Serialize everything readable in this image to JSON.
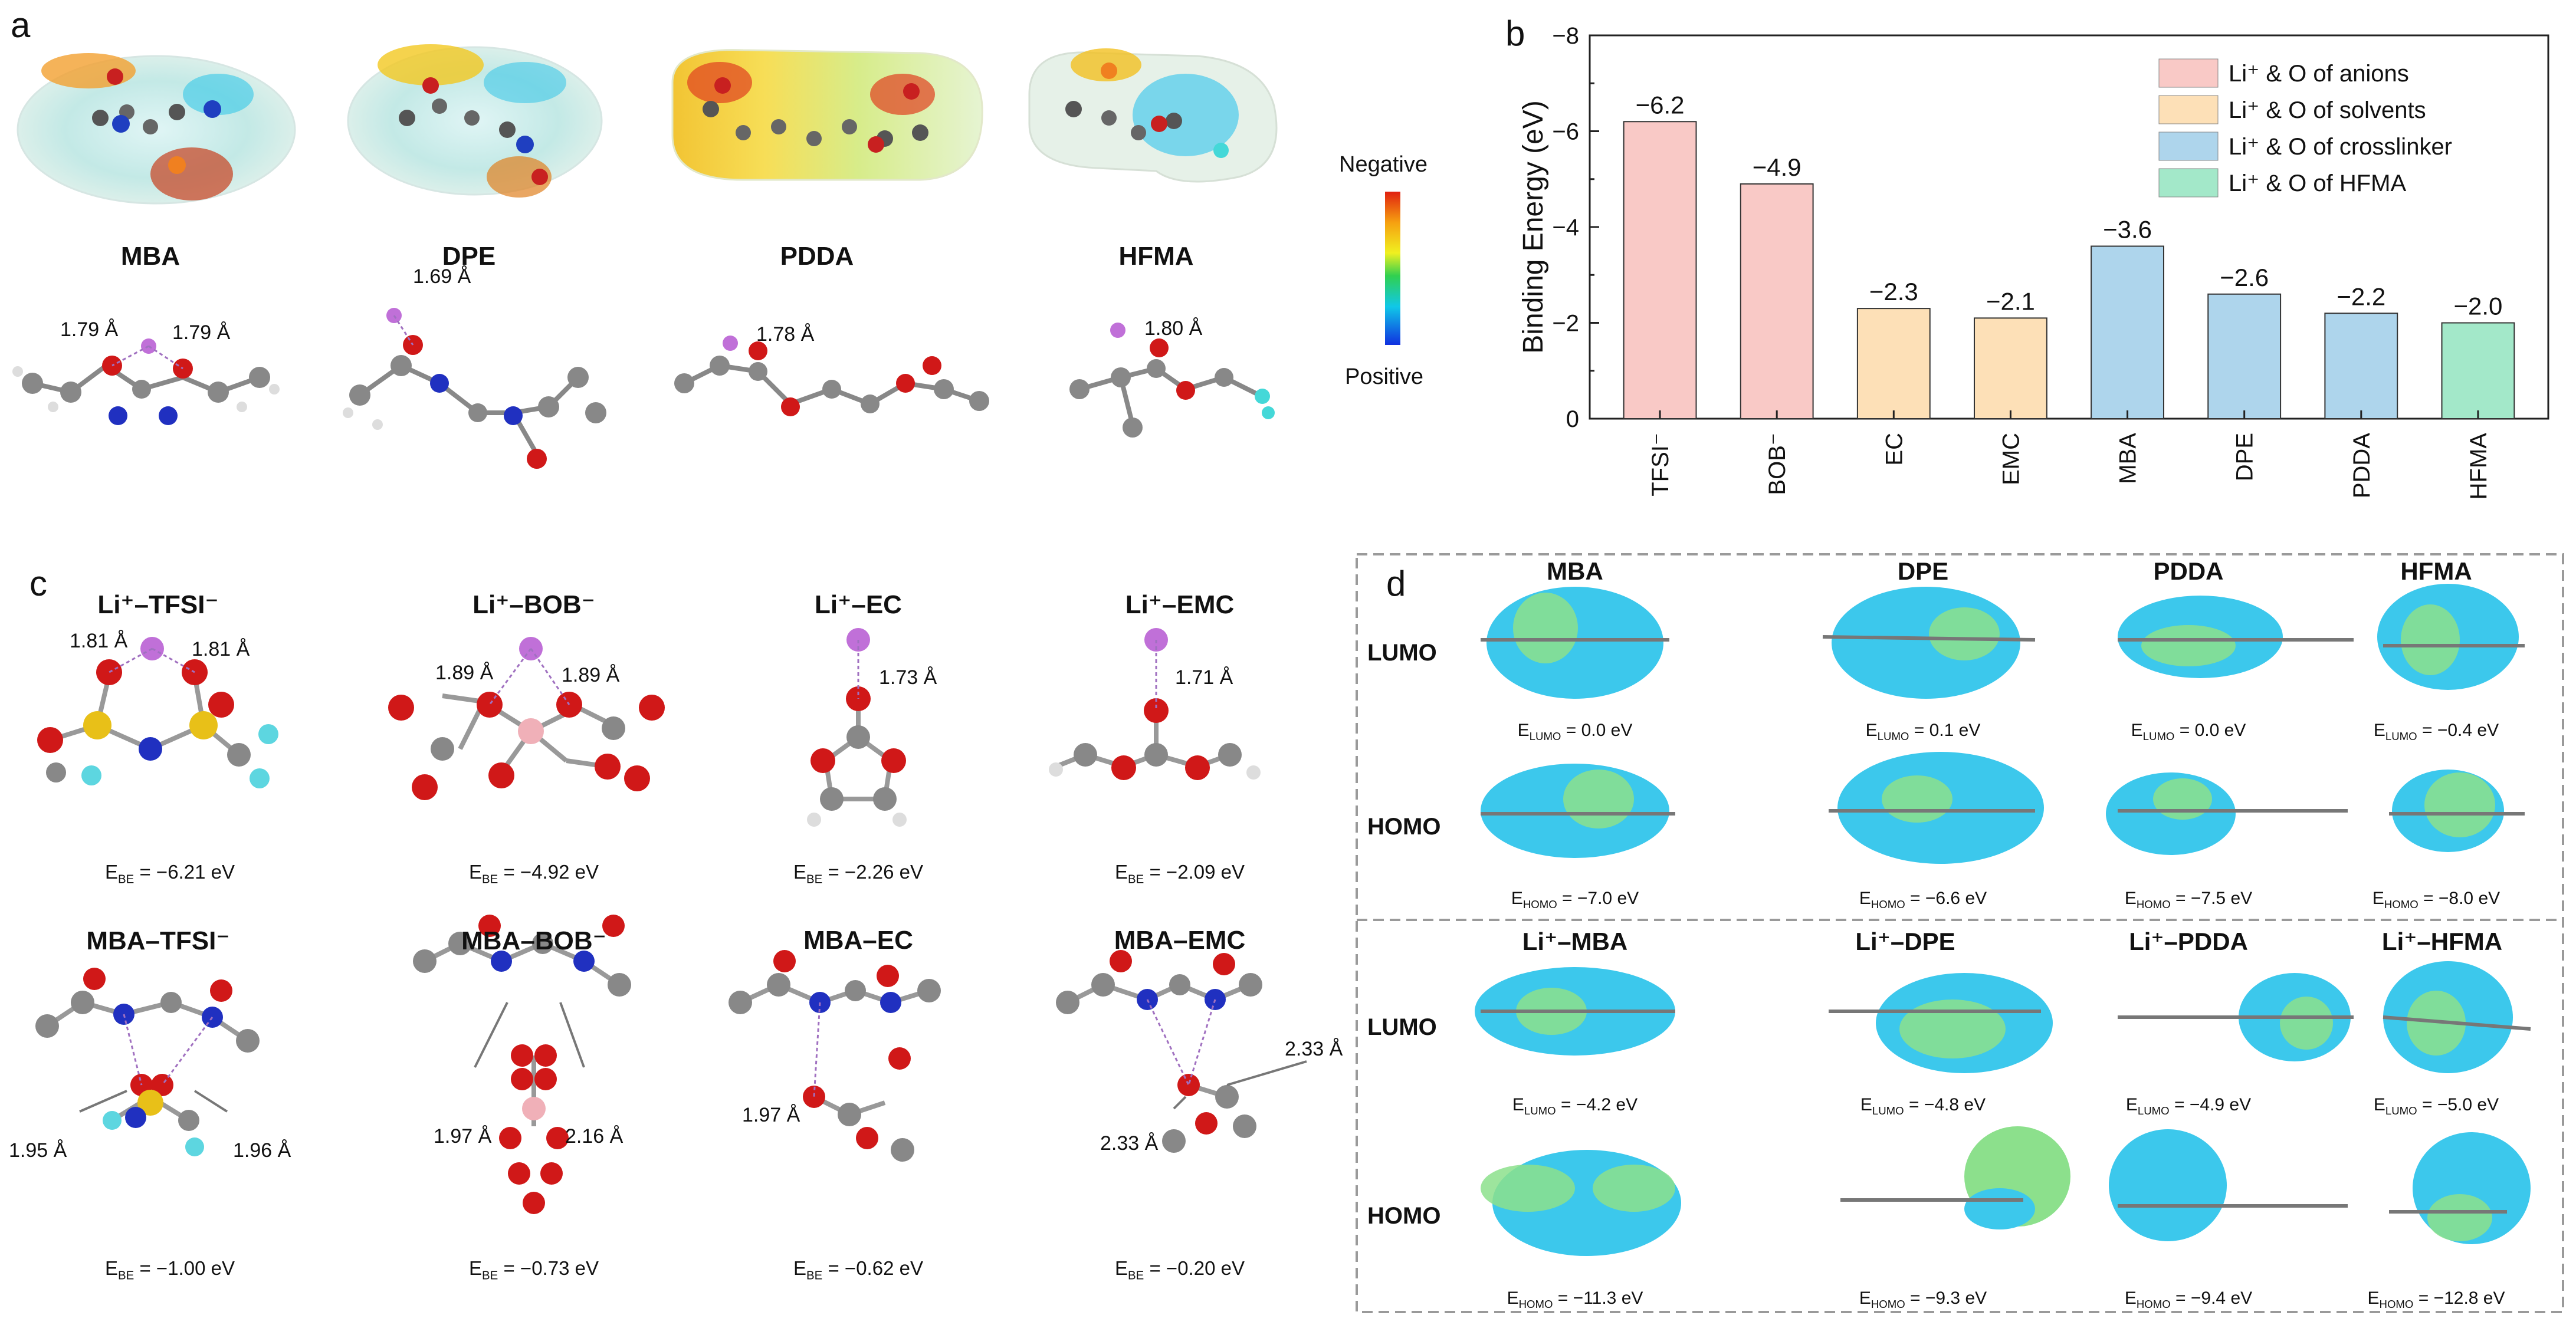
{
  "panels": {
    "a": "a",
    "b": "b",
    "c": "c",
    "d": "d"
  },
  "panel_a": {
    "molecules": [
      {
        "name": "MBA",
        "dists": [
          "1.79 Å",
          "1.79 Å"
        ]
      },
      {
        "name": "DPE",
        "dists": [
          "1.69 Å"
        ]
      },
      {
        "name": "PDDA",
        "dists": [
          "1.78 Å"
        ]
      },
      {
        "name": "HFMA",
        "dists": [
          "1.80 Å"
        ]
      }
    ],
    "colorbar": {
      "top": "Negative",
      "bottom": "Positive"
    }
  },
  "chart_data": {
    "type": "bar",
    "ylabel": "Binding Energy (eV)",
    "ylim": [
      0,
      -8
    ],
    "yticks": [
      "0",
      "−2",
      "−4",
      "−6",
      "−8"
    ],
    "categories": [
      "TFSI⁻",
      "BOB⁻",
      "EC",
      "EMC",
      "MBA",
      "DPE",
      "PDDA",
      "HFMA"
    ],
    "values": [
      -6.2,
      -4.9,
      -2.3,
      -2.1,
      -3.6,
      -2.6,
      -2.2,
      -2.0
    ],
    "value_labels": [
      "−6.2",
      "−4.9",
      "−2.3",
      "−2.1",
      "−3.6",
      "−2.6",
      "−2.2",
      "−2.0"
    ],
    "groups": [
      "anions",
      "anions",
      "solvents",
      "solvents",
      "crosslinker",
      "crosslinker",
      "crosslinker",
      "HFMA"
    ],
    "legend": [
      {
        "key": "anions",
        "label": "Li⁺ & O of anions",
        "color": "#f9c9c6"
      },
      {
        "key": "solvents",
        "label": "Li⁺ & O of solvents",
        "color": "#fde0b7"
      },
      {
        "key": "crosslinker",
        "label": "Li⁺ & O of crosslinker",
        "color": "#aed5ec"
      },
      {
        "key": "HFMA",
        "label": "Li⁺ & O of HFMA",
        "color": "#a3e8c9"
      }
    ],
    "legend_position": "top-right"
  },
  "panel_c": {
    "top": [
      {
        "title": "Li⁺–TFSI⁻",
        "dists": [
          "1.81 Å",
          "1.81 Å"
        ],
        "ebe": "−6.21 eV"
      },
      {
        "title": "Li⁺–BOB⁻",
        "dists": [
          "1.89 Å",
          "1.89 Å"
        ],
        "ebe": "−4.92 eV"
      },
      {
        "title": "Li⁺–EC",
        "dists": [
          "1.73 Å"
        ],
        "ebe": "−2.26 eV"
      },
      {
        "title": "Li⁺–EMC",
        "dists": [
          "1.71 Å"
        ],
        "ebe": "−2.09 eV"
      }
    ],
    "bottom": [
      {
        "title": "MBA–TFSI⁻",
        "dists": [
          "1.95 Å",
          "1.96 Å"
        ],
        "ebe": "−1.00 eV"
      },
      {
        "title": "MBA–BOB⁻",
        "dists": [
          "1.97 Å",
          "2.16 Å"
        ],
        "ebe": "−0.73 eV"
      },
      {
        "title": "MBA–EC",
        "dists": [
          "1.97 Å"
        ],
        "ebe": "−0.62 eV"
      },
      {
        "title": "MBA–EMC",
        "dists": [
          "2.33 Å",
          "2.33 Å"
        ],
        "ebe": "−0.20 eV"
      }
    ],
    "ebe_prefix": "E",
    "ebe_sub": "BE",
    "eq": " = "
  },
  "panel_d": {
    "rows": {
      "lumo": "LUMO",
      "homo": "HOMO"
    },
    "e_prefix": "E",
    "lumo_sub": "LUMO",
    "homo_sub": "HOMO",
    "eq": " = ",
    "top": [
      {
        "name": "MBA",
        "lumo": "0.0 eV",
        "homo": "−7.0 eV"
      },
      {
        "name": "DPE",
        "lumo": "0.1 eV",
        "homo": "−6.6 eV"
      },
      {
        "name": "PDDA",
        "lumo": "0.0 eV",
        "homo": "−7.5 eV"
      },
      {
        "name": "HFMA",
        "lumo": "−0.4 eV",
        "homo": "−8.0 eV"
      }
    ],
    "bottom": [
      {
        "name": "Li⁺–MBA",
        "lumo": "−4.2 eV",
        "homo": "−11.3 eV"
      },
      {
        "name": "Li⁺–DPE",
        "lumo": "−4.8 eV",
        "homo": "−9.3 eV"
      },
      {
        "name": "Li⁺–PDDA",
        "lumo": "−4.9 eV",
        "homo": "−9.4 eV"
      },
      {
        "name": "Li⁺–HFMA",
        "lumo": "−5.0 eV",
        "homo": "−12.8 eV"
      }
    ]
  }
}
